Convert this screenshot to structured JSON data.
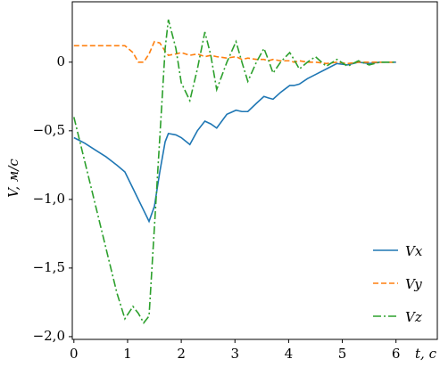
{
  "chart_data": {
    "type": "line",
    "xlabel": "t, c",
    "ylabel": "V, м/с",
    "x": [
      0,
      0.2,
      0.4,
      0.6,
      0.8,
      0.95,
      1.1,
      1.2,
      1.3,
      1.4,
      1.5,
      1.6,
      1.7,
      1.76,
      1.9,
      2.0,
      2.16,
      2.3,
      2.44,
      2.55,
      2.66,
      2.85,
      3.02,
      3.13,
      3.24,
      3.4,
      3.54,
      3.62,
      3.71,
      3.85,
      4.02,
      4.1,
      4.2,
      4.35,
      4.5,
      4.7,
      4.9,
      5.1,
      5.3,
      5.5,
      5.7,
      6.0
    ],
    "series": [
      {
        "name": "Vx",
        "color": "#1f77b4",
        "linestyle": "solid",
        "values": [
          -0.55,
          -0.59,
          -0.64,
          -0.69,
          -0.75,
          -0.8,
          -0.92,
          -1.0,
          -1.08,
          -1.16,
          -1.05,
          -0.8,
          -0.58,
          -0.52,
          -0.53,
          -0.55,
          -0.6,
          -0.5,
          -0.43,
          -0.45,
          -0.48,
          -0.38,
          -0.35,
          -0.36,
          -0.36,
          -0.3,
          -0.25,
          -0.26,
          -0.27,
          -0.22,
          -0.17,
          -0.17,
          -0.16,
          -0.12,
          -0.09,
          -0.05,
          -0.01,
          -0.02,
          0.0,
          -0.01,
          0.0,
          0.0
        ]
      },
      {
        "name": "Vy",
        "color": "#ff7f0e",
        "linestyle": "dashed",
        "values": [
          0.12,
          0.12,
          0.12,
          0.12,
          0.12,
          0.12,
          0.07,
          0.0,
          0.0,
          0.06,
          0.15,
          0.14,
          0.08,
          0.05,
          0.06,
          0.07,
          0.05,
          0.06,
          0.04,
          0.05,
          0.04,
          0.03,
          0.04,
          0.02,
          0.03,
          0.02,
          0.02,
          0.01,
          0.02,
          0.01,
          0.01,
          0.0,
          0.01,
          0.0,
          0.0,
          -0.01,
          0.0,
          -0.01,
          0.0,
          0.0,
          0.0,
          0.0
        ]
      },
      {
        "name": "Vz",
        "color": "#2ca02c",
        "linestyle": "dashdot",
        "values": [
          -0.4,
          -0.72,
          -1.04,
          -1.36,
          -1.68,
          -1.87,
          -1.78,
          -1.83,
          -1.9,
          -1.85,
          -1.2,
          -0.55,
          0.1,
          0.31,
          0.1,
          -0.15,
          -0.28,
          -0.05,
          0.22,
          0.05,
          -0.2,
          0.0,
          0.15,
          0.0,
          -0.14,
          0.0,
          0.1,
          0.02,
          -0.08,
          0.0,
          0.07,
          0.02,
          -0.05,
          0.0,
          0.04,
          -0.03,
          0.02,
          -0.03,
          0.01,
          -0.02,
          0.0,
          0.0
        ]
      }
    ],
    "xlim": [
      -0.03,
      6.77
    ],
    "ylim": [
      -2.02,
      0.44
    ],
    "xticks": [
      0,
      1,
      2,
      3,
      4,
      5,
      6
    ],
    "yticks": [
      {
        "value": 0,
        "label": "0"
      },
      {
        "value": -0.5,
        "label": "−0,5"
      },
      {
        "value": -1.0,
        "label": "−1,0"
      },
      {
        "value": -1.5,
        "label": "−1,5"
      },
      {
        "value": -2.0,
        "label": "−2,0"
      }
    ],
    "legend": "lower right",
    "grid": false
  }
}
